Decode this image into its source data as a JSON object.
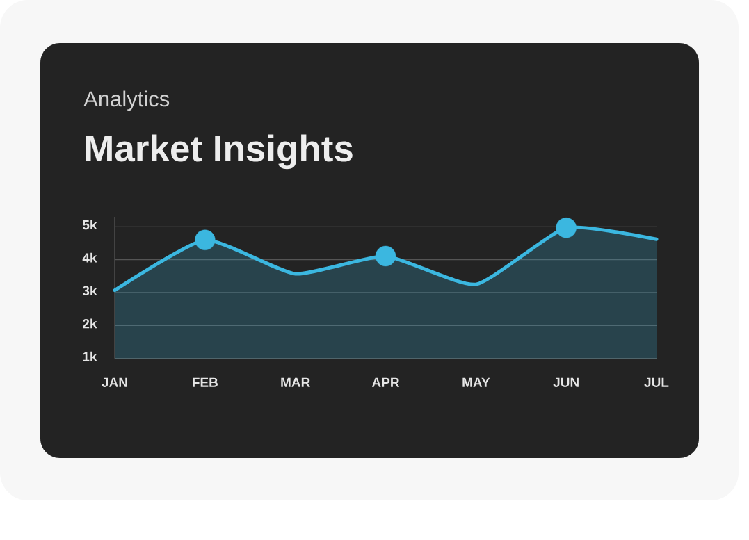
{
  "chart_data": {
    "type": "area",
    "subtitle": "Analytics",
    "title": "Market Insights",
    "categories": [
      "JAN",
      "FEB",
      "MAR",
      "APR",
      "MAY",
      "JUN",
      "JUL"
    ],
    "ylim": [
      1000,
      5300
    ],
    "yticks": [
      {
        "value": 1000,
        "label": "1k"
      },
      {
        "value": 2000,
        "label": "2k"
      },
      {
        "value": 3000,
        "label": "3k"
      },
      {
        "value": 4000,
        "label": "4k"
      },
      {
        "value": 5000,
        "label": "5k"
      }
    ],
    "grid": "y",
    "series": [
      {
        "color": "#3bb7e0",
        "values": [
          3070,
          4600,
          3570,
          4110,
          3250,
          4970,
          4620
        ]
      },
      {
        "type": "scatter",
        "color": "#3bb7e0",
        "marker": "circle",
        "values": [
          null,
          4600,
          null,
          4110,
          null,
          4970,
          null
        ]
      }
    ]
  }
}
